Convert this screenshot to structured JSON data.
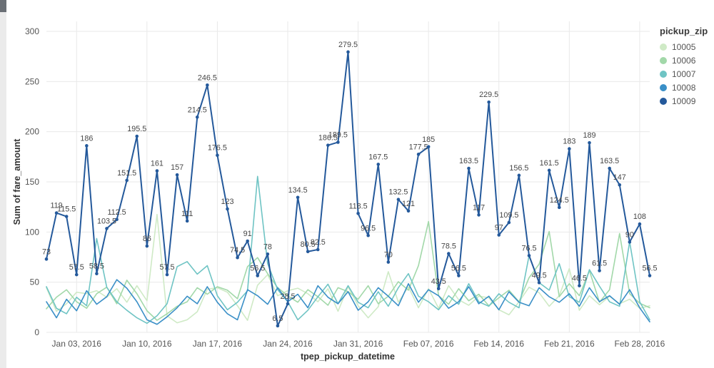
{
  "chart_data": {
    "type": "line",
    "title": "",
    "xlabel": "tpep_pickup_datetime",
    "ylabel": "Sum of fare_amount",
    "legend_title": "pickup_zip",
    "legend_position": "right",
    "grid": true,
    "grid_color": "#e9e9e9",
    "label_color": "#474747",
    "ylim": [
      0,
      300
    ],
    "yticks": [
      0,
      50,
      100,
      150,
      200,
      250,
      300
    ],
    "x_ticks": [
      {
        "label": "Jan 03, 2016",
        "index": 3
      },
      {
        "label": "Jan 10, 2016",
        "index": 10
      },
      {
        "label": "Jan 17, 2016",
        "index": 17
      },
      {
        "label": "Jan 24, 2016",
        "index": 24
      },
      {
        "label": "Jan 31, 2016",
        "index": 31
      },
      {
        "label": "Feb 07, 2016",
        "index": 38
      },
      {
        "label": "Feb 14, 2016",
        "index": 45
      },
      {
        "label": "Feb 21, 2016",
        "index": 52
      },
      {
        "label": "Feb 28, 2016",
        "index": 59
      }
    ],
    "series": [
      {
        "name": "10005",
        "color": "#cfeac6",
        "labeled": false,
        "values": [
          44.5,
          21,
          28.5,
          40,
          38.5,
          41.5,
          35,
          43.5,
          30,
          46.5,
          31.5,
          117.5,
          16.5,
          9.5,
          12.5,
          20.5,
          43,
          44.5,
          40,
          26.5,
          12,
          47,
          57.5,
          36.5,
          41.5,
          44,
          38.5,
          30.5,
          43.5,
          21,
          45.5,
          26.5,
          14.5,
          25.5,
          60.5,
          30,
          45.5,
          24.5,
          43.5,
          24,
          46.5,
          32.5,
          27,
          36,
          34.5,
          22.5,
          17.5,
          30.5,
          45,
          39.5,
          26,
          36.5,
          63.5,
          22,
          36.5,
          27.5,
          36,
          28.5,
          33,
          24,
          26.5
        ]
      },
      {
        "name": "10006",
        "color": "#a2d8a9",
        "labeled": false,
        "values": [
          23.5,
          35,
          42.5,
          30.5,
          24,
          38.5,
          45,
          28.5,
          52,
          38.5,
          21.5,
          12,
          18.5,
          26,
          30.5,
          44.5,
          38,
          45.5,
          42,
          33.5,
          65.5,
          74.5,
          58.5,
          44.5,
          36.5,
          30,
          42.5,
          35.5,
          27,
          44.5,
          40.5,
          33,
          46.5,
          28.5,
          36,
          50.5,
          42,
          66.5,
          110.5,
          36.5,
          28,
          43.5,
          31.5,
          38,
          26.5,
          34.5,
          42,
          30.5,
          54.5,
          68,
          100.5,
          35.5,
          48.5,
          36.5,
          61.5,
          30,
          42.5,
          98.5,
          38.5,
          29,
          24.5
        ]
      },
      {
        "name": "10007",
        "color": "#6fc4c4",
        "labeled": false,
        "values": [
          45.5,
          24,
          18.5,
          35,
          26.5,
          93.5,
          45,
          30.5,
          22,
          14.5,
          9,
          16.5,
          28.5,
          65.5,
          70.5,
          58,
          66.5,
          36.5,
          22.5,
          30,
          41.5,
          155.5,
          68.5,
          42.5,
          30.5,
          12.5,
          22,
          35.5,
          48,
          28.5,
          46.5,
          30,
          24.5,
          40.5,
          26,
          44.5,
          58.5,
          36,
          30.5,
          22.5,
          36.5,
          28,
          48.5,
          30.5,
          26,
          38.5,
          30,
          24.5,
          76.5,
          49.5,
          42,
          68.5,
          35.5,
          30,
          62.5,
          46,
          30.5,
          26,
          90.5,
          30.5,
          12.5
        ]
      },
      {
        "name": "10008",
        "color": "#3a8fc7",
        "labeled": false,
        "values": [
          30.5,
          14.5,
          33,
          21.5,
          41.5,
          28,
          35.5,
          52.5,
          44,
          30.5,
          12.5,
          8,
          15.5,
          24.5,
          36,
          28.5,
          45.5,
          30,
          18.5,
          12.5,
          42.5,
          36.5,
          28,
          44.5,
          30.5,
          38,
          24.5,
          46.5,
          35,
          28.5,
          40.5,
          22,
          30.5,
          44.5,
          36,
          26.5,
          48.5,
          30,
          42.5,
          36.5,
          24,
          30.5,
          45.5,
          28.5,
          36,
          22.5,
          40.5,
          30,
          26.5,
          44.5,
          35.5,
          30,
          38.5,
          26,
          44.5,
          30.5,
          36.5,
          28,
          42.5,
          24.5,
          10.5
        ]
      },
      {
        "name": "10009",
        "color": "#24599b",
        "labeled": true,
        "values": [
          73,
          119,
          115.5,
          57.5,
          186,
          58.5,
          103.5,
          112.5,
          151.5,
          195.5,
          86,
          161,
          57.5,
          157,
          111,
          214.5,
          246.5,
          176.5,
          123,
          74.5,
          91,
          56.5,
          78,
          6.5,
          28.5,
          134.5,
          80.5,
          82.5,
          186.5,
          189.5,
          279.5,
          118.5,
          96.5,
          167.5,
          70,
          132.5,
          121,
          177.5,
          185,
          43.5,
          78.5,
          56.5,
          163.5,
          117,
          229.5,
          97,
          109.5,
          156.5,
          76.5,
          49.5,
          161.5,
          124.5,
          183,
          46.5,
          189,
          61.5,
          163.5,
          147,
          90,
          108,
          56.5
        ]
      }
    ]
  }
}
